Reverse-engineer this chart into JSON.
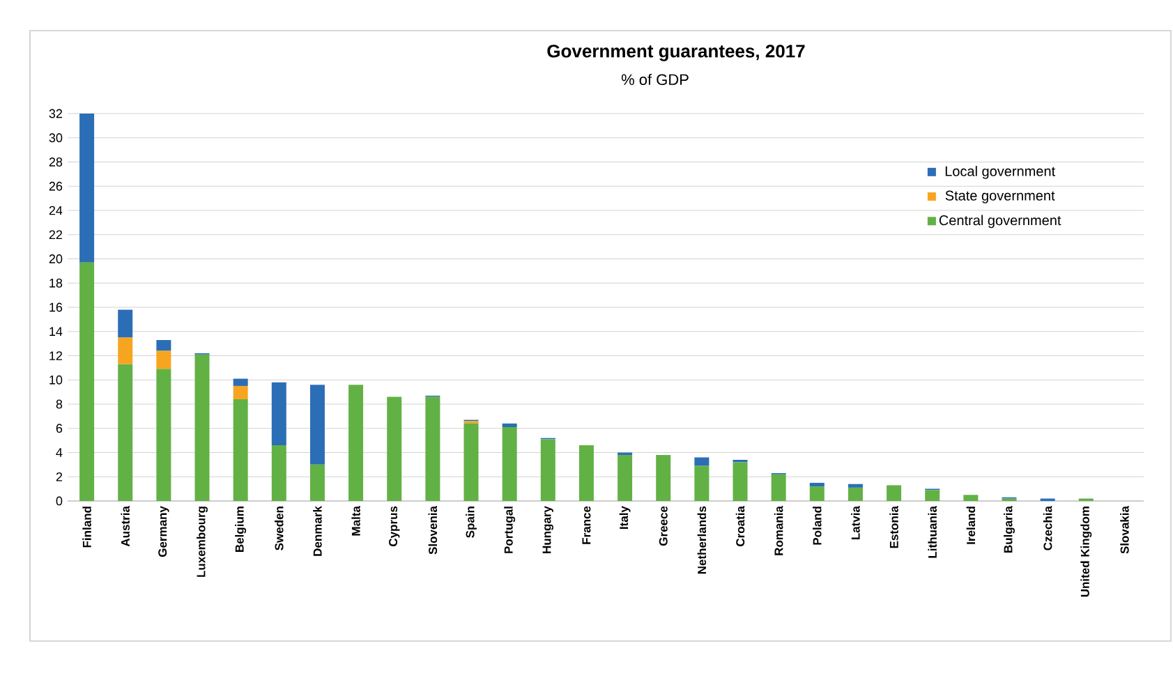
{
  "chart_data": {
    "type": "bar",
    "title": "Government guarantees, 2017",
    "subtitle": "% of GDP",
    "stacked": true,
    "categories": [
      "Finland",
      "Austria",
      "Germany",
      "Luxembourg",
      "Belgium",
      "Sweden",
      "Denmark",
      "Malta",
      "Cyprus",
      "Slovenia",
      "Spain",
      "Portugal",
      "Hungary",
      "France",
      "Italy",
      "Greece",
      "Netherlands",
      "Croatia",
      "Romania",
      "Poland",
      "Latvia",
      "Estonia",
      "Lithuania",
      "Ireland",
      "Bulgaria",
      "Czechia",
      "United Kingdom",
      "Slovakia"
    ],
    "series": [
      {
        "name": "Central government",
        "color": "#62b145",
        "values": [
          19.7,
          11.3,
          10.9,
          12.1,
          8.4,
          4.6,
          3.0,
          9.6,
          8.6,
          8.6,
          6.4,
          6.1,
          5.1,
          4.6,
          3.8,
          3.8,
          2.9,
          3.2,
          2.2,
          1.2,
          1.1,
          1.3,
          0.9,
          0.5,
          0.2,
          0,
          0.2,
          0
        ]
      },
      {
        "name": "State government",
        "color": "#f7a520",
        "values": [
          0,
          2.2,
          1.5,
          0,
          1.1,
          0,
          0,
          0,
          0,
          0,
          0.2,
          0,
          0,
          0,
          0,
          0,
          0,
          0,
          0,
          0,
          0,
          0,
          0,
          0,
          0,
          0,
          0,
          0
        ]
      },
      {
        "name": "Local government",
        "color": "#2b6eb6",
        "values": [
          12.3,
          2.3,
          0.9,
          0.1,
          0.6,
          5.2,
          6.6,
          0,
          0,
          0.1,
          0.1,
          0.3,
          0.1,
          0,
          0.2,
          0,
          0.7,
          0.2,
          0.1,
          0.3,
          0.3,
          0,
          0.1,
          0,
          0.1,
          0.2,
          0,
          0
        ]
      }
    ],
    "ylim": [
      0,
      32
    ],
    "yticks": [
      0,
      2,
      4,
      6,
      8,
      10,
      12,
      14,
      16,
      18,
      20,
      22,
      24,
      26,
      28,
      30,
      32
    ],
    "grid": "y",
    "legend": "top right"
  }
}
